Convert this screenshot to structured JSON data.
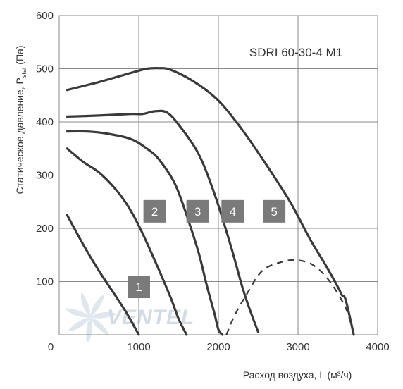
{
  "chart_data": {
    "type": "line",
    "title": "SDRI 60-30-4 M1",
    "xlabel": "Расход воздуха, L (м³/ч)",
    "ylabel_main": "Статическое давление, P",
    "ylabel_sub": "stat",
    "ylabel_unit": " (Па)",
    "xlim": [
      0,
      4000
    ],
    "ylim": [
      0,
      600
    ],
    "x_ticks": [
      "0",
      "1000",
      "2000",
      "3000",
      "4000"
    ],
    "y_ticks": [
      "100",
      "200",
      "300",
      "400",
      "500",
      "600"
    ],
    "grid": true,
    "watermark": "VENTEL",
    "line_color": "#3a3a3a",
    "badge_color": "#7a7a7a",
    "series": [
      {
        "name": "1",
        "label_at": [
          1000,
          90
        ],
        "points": [
          [
            100,
            225
          ],
          [
            300,
            170
          ],
          [
            500,
            120
          ],
          [
            700,
            75
          ],
          [
            850,
            40
          ],
          [
            1000,
            0
          ]
        ]
      },
      {
        "name": "2",
        "label_at": [
          1200,
          232
        ],
        "points": [
          [
            100,
            350
          ],
          [
            300,
            325
          ],
          [
            500,
            305
          ],
          [
            700,
            275
          ],
          [
            850,
            245
          ],
          [
            1000,
            205
          ],
          [
            1200,
            140
          ],
          [
            1400,
            70
          ],
          [
            1500,
            30
          ],
          [
            1600,
            0
          ]
        ]
      },
      {
        "name": "3",
        "label_at": [
          1740,
          232
        ],
        "points": [
          [
            100,
            382
          ],
          [
            350,
            382
          ],
          [
            600,
            378
          ],
          [
            900,
            368
          ],
          [
            1100,
            350
          ],
          [
            1250,
            330
          ],
          [
            1450,
            285
          ],
          [
            1600,
            225
          ],
          [
            1750,
            155
          ],
          [
            1850,
            95
          ],
          [
            1950,
            40
          ],
          [
            2000,
            10
          ],
          [
            2050,
            0
          ]
        ]
      },
      {
        "name": "4",
        "label_at": [
          2180,
          232
        ],
        "points": [
          [
            100,
            410
          ],
          [
            500,
            412
          ],
          [
            900,
            415
          ],
          [
            1050,
            415
          ],
          [
            1200,
            420
          ],
          [
            1350,
            418
          ],
          [
            1500,
            395
          ],
          [
            1750,
            340
          ],
          [
            1950,
            265
          ],
          [
            2150,
            170
          ],
          [
            2300,
            90
          ],
          [
            2400,
            45
          ],
          [
            2500,
            5
          ]
        ]
      },
      {
        "name": "5",
        "label_at": [
          2700,
          232
        ],
        "points": [
          [
            100,
            460
          ],
          [
            500,
            475
          ],
          [
            900,
            492
          ],
          [
            1100,
            500
          ],
          [
            1250,
            501
          ],
          [
            1400,
            498
          ],
          [
            1700,
            475
          ],
          [
            2000,
            440
          ],
          [
            2300,
            385
          ],
          [
            2600,
            320
          ],
          [
            2900,
            250
          ],
          [
            3150,
            180
          ],
          [
            3350,
            130
          ],
          [
            3500,
            90
          ],
          [
            3550,
            75
          ],
          [
            3600,
            65
          ],
          [
            3700,
            0
          ]
        ]
      }
    ],
    "dashed_curve": {
      "points": [
        [
          2100,
          0
        ],
        [
          2200,
          35
        ],
        [
          2350,
          75
        ],
        [
          2550,
          120
        ],
        [
          2800,
          137
        ],
        [
          3000,
          140
        ],
        [
          3200,
          130
        ],
        [
          3400,
          100
        ],
        [
          3600,
          50
        ],
        [
          3700,
          0
        ]
      ]
    }
  }
}
